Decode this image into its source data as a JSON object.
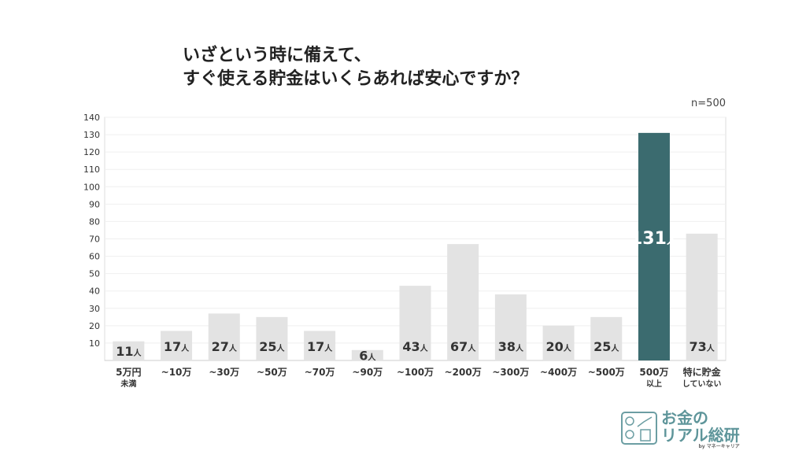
{
  "chart_data": {
    "type": "bar",
    "title": [
      "いざという時に備えて、",
      "すぐ使える貯金はいくらあれば安心ですか？"
    ],
    "note": "n=500",
    "categories": [
      [
        "5万円",
        "未満"
      ],
      [
        "~10万"
      ],
      [
        "~30万"
      ],
      [
        "~50万"
      ],
      [
        "~70万"
      ],
      [
        "~90万"
      ],
      [
        "~100万"
      ],
      [
        "~200万"
      ],
      [
        "~300万"
      ],
      [
        "~400万"
      ],
      [
        "~500万"
      ],
      [
        "500万",
        "以上"
      ],
      [
        "特に貯金",
        "していない"
      ]
    ],
    "values": [
      11,
      17,
      27,
      25,
      17,
      6,
      43,
      67,
      38,
      20,
      25,
      131,
      73
    ],
    "value_suffix": "人",
    "highlight_index": 11,
    "ylim": [
      0,
      140
    ],
    "yticks": [
      10,
      20,
      30,
      40,
      50,
      60,
      70,
      80,
      90,
      100,
      110,
      120,
      130,
      140
    ],
    "grid": true,
    "colors": {
      "bar": "#e3e3e3",
      "highlight": "#3b6b6f",
      "label": "#333333",
      "highlight_label": "#ffffff"
    }
  },
  "logo": {
    "line1": "お金の",
    "line2": "リアル総研",
    "byline": "by マネーキャリア"
  }
}
